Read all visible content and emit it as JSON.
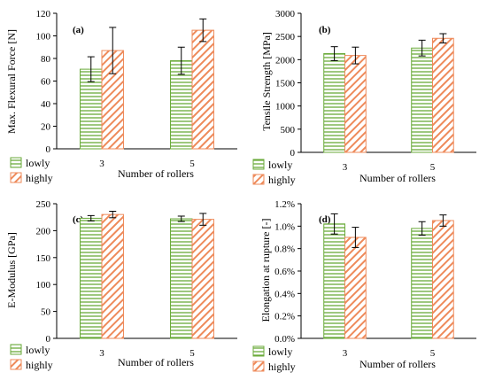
{
  "colors": {
    "lowly": "#6aaa3a",
    "highly": "#ee8a5a",
    "axis": "#000000",
    "errorbar": "#000000"
  },
  "chart_data": [
    {
      "type": "bar",
      "panel": "(a)",
      "ylabel": "Max. Flexural  Force [N]",
      "xlabel": "Number of rollers",
      "categories": [
        "3",
        "5"
      ],
      "ylim": [
        0,
        120
      ],
      "yticks": [
        "0",
        "20",
        "40",
        "60",
        "80",
        "100",
        "120"
      ],
      "series": [
        {
          "name": "lowly",
          "values": [
            70.5,
            78
          ],
          "errors": [
            11,
            12
          ]
        },
        {
          "name": "highly",
          "values": [
            87,
            105
          ],
          "errors": [
            20.5,
            10
          ]
        }
      ],
      "legend": [
        "lowly",
        "highly"
      ]
    },
    {
      "type": "bar",
      "panel": "(b)",
      "ylabel": "Tensile Strength [MPa]",
      "xlabel": "Number of rollers",
      "categories": [
        "3",
        "5"
      ],
      "ylim": [
        0,
        3000
      ],
      "yticks": [
        "0",
        "500",
        "1000",
        "1500",
        "2000",
        "2500",
        "3000"
      ],
      "series": [
        {
          "name": "lowly",
          "values": [
            2130,
            2250
          ],
          "errors": [
            150,
            170
          ]
        },
        {
          "name": "highly",
          "values": [
            2090,
            2460
          ],
          "errors": [
            180,
            100
          ]
        }
      ],
      "legend": [
        "lowly",
        "highly"
      ]
    },
    {
      "type": "bar",
      "panel": "(c)",
      "ylabel": "E-Modulus [GPa]",
      "xlabel": "Number of rollers",
      "categories": [
        "3",
        "5"
      ],
      "ylim": [
        0,
        250
      ],
      "yticks": [
        "0",
        "50",
        "100",
        "150",
        "200",
        "250"
      ],
      "series": [
        {
          "name": "lowly",
          "values": [
            223,
            222
          ],
          "errors": [
            5,
            5
          ]
        },
        {
          "name": "highly",
          "values": [
            230,
            221
          ],
          "errors": [
            6,
            11
          ]
        }
      ],
      "legend": [
        "lowly",
        "highly"
      ]
    },
    {
      "type": "bar",
      "panel": "(d)",
      "ylabel": "Elongation at rupture [-]",
      "xlabel": "Number of rollers",
      "categories": [
        "3",
        "5"
      ],
      "ylim": [
        0,
        1.2
      ],
      "yticks": [
        "0.0%",
        "0.2%",
        "0.4%",
        "0.6%",
        "0.8%",
        "1.0%",
        "1.2%"
      ],
      "series": [
        {
          "name": "lowly",
          "values": [
            1.02,
            0.98
          ],
          "errors": [
            0.09,
            0.06
          ]
        },
        {
          "name": "highly",
          "values": [
            0.9,
            1.05
          ],
          "errors": [
            0.09,
            0.05
          ]
        }
      ],
      "legend": [
        "lowly",
        "highly"
      ]
    }
  ]
}
